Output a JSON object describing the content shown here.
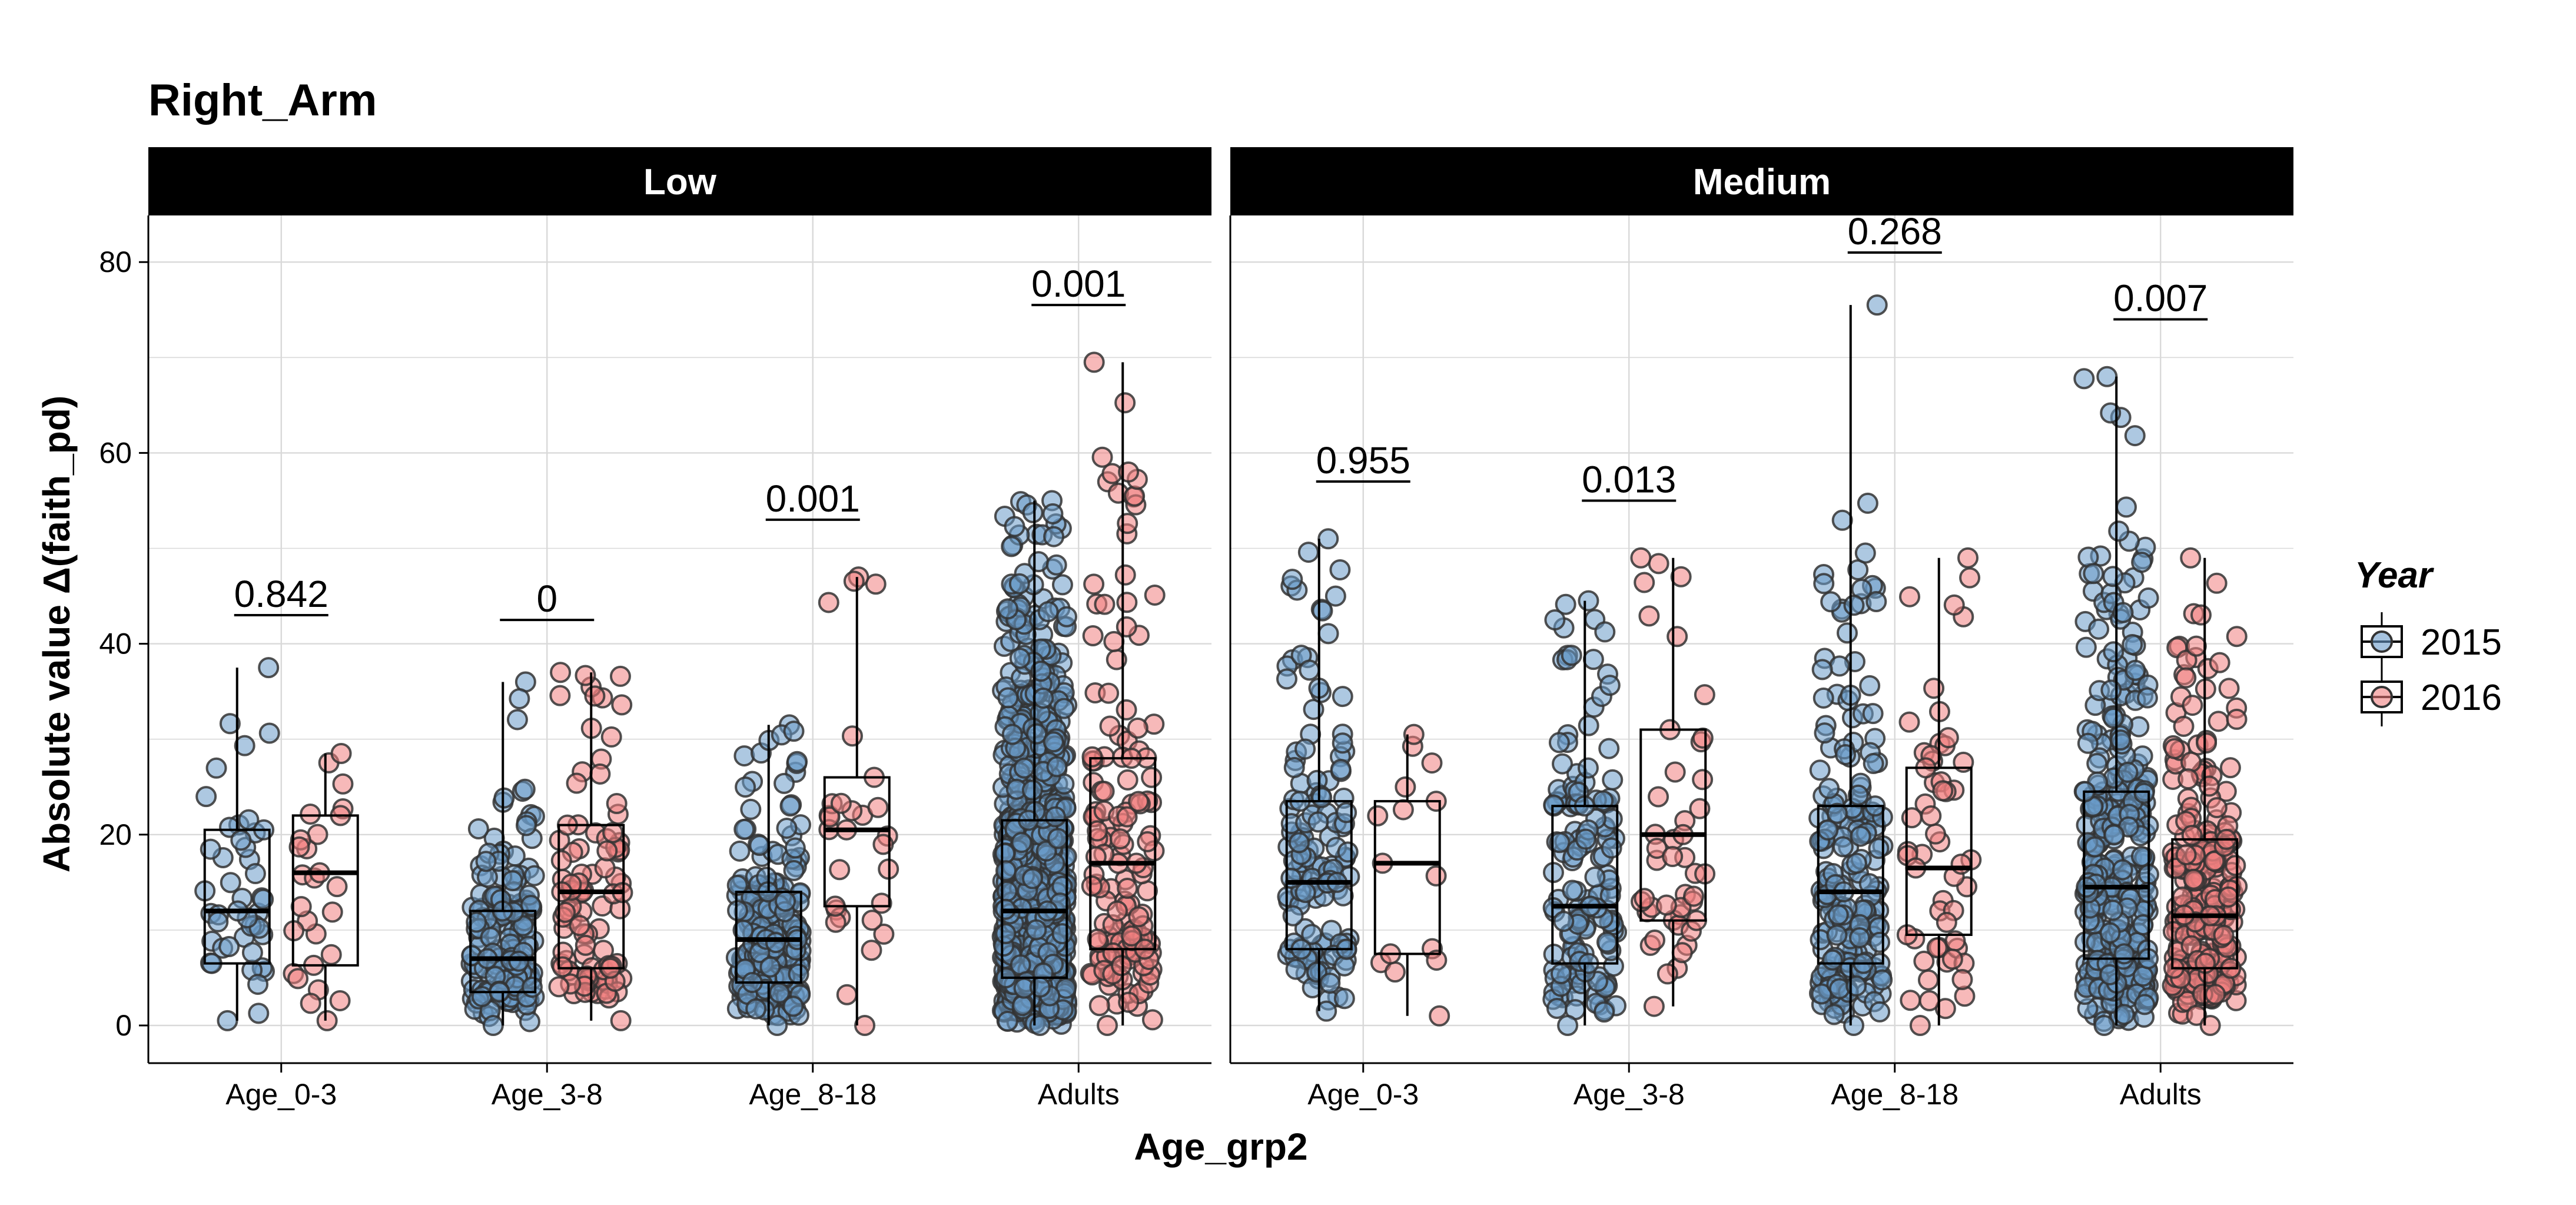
{
  "chart_data": {
    "type": "scatter",
    "title": "Right_Arm",
    "xlabel": "Age_grp2",
    "ylabel": "Absolute value Δ(faith_pd)",
    "ylim": [
      -4,
      85
    ],
    "yticks": [
      0,
      20,
      40,
      60,
      80
    ],
    "categories": [
      "Age_0-3",
      "Age_3-8",
      "Age_8-18",
      "Adults"
    ],
    "grid": true,
    "legend": {
      "title": "Year",
      "position": "right",
      "entries": [
        {
          "label": "2015",
          "color": "#6a9bc9"
        },
        {
          "label": "2016",
          "color": "#f08080"
        }
      ]
    },
    "panels": [
      {
        "name": "Low",
        "groups": [
          {
            "category": "Age_0-3",
            "box_2015": {
              "whisker_low": 0.5,
              "q1": 6.5,
              "median": 12,
              "q3": 20.5,
              "whisker_high": 37.5,
              "n": 40
            },
            "box_2016": {
              "whisker_low": 0.5,
              "q1": 6.3,
              "median": 16,
              "q3": 22,
              "whisker_high": 28.5,
              "n": 22
            },
            "pvalue": "0.842",
            "pvalue_y": 43
          },
          {
            "category": "Age_3-8",
            "box_2015": {
              "whisker_low": 0,
              "q1": 3.5,
              "median": 7,
              "q3": 12,
              "whisker_high": 36,
              "n": 160
            },
            "box_2016": {
              "whisker_low": 0.5,
              "q1": 6,
              "median": 14,
              "q3": 21,
              "whisker_high": 37,
              "n": 90
            },
            "pvalue": "0",
            "pvalue_y": 42.5
          },
          {
            "category": "Age_8-18",
            "box_2015": {
              "whisker_low": 0,
              "q1": 4.5,
              "median": 9,
              "q3": 14,
              "whisker_high": 31.5,
              "n": 230
            },
            "box_2016": {
              "whisker_low": 0,
              "q1": 12.5,
              "median": 20.5,
              "q3": 26,
              "whisker_high": 47,
              "n": 22
            },
            "pvalue": "0.001",
            "pvalue_y": 53
          },
          {
            "category": "Adults",
            "box_2015": {
              "whisker_low": 0,
              "q1": 5,
              "median": 12,
              "q3": 21.5,
              "whisker_high": 55,
              "n": 1000
            },
            "box_2016": {
              "whisker_low": 0,
              "q1": 8,
              "median": 17,
              "q3": 28,
              "whisker_high": 69.5,
              "n": 140
            },
            "pvalue": "0.001",
            "pvalue_y": 75.5
          }
        ]
      },
      {
        "name": "Medium",
        "groups": [
          {
            "category": "Age_0-3",
            "box_2015": {
              "whisker_low": 1.5,
              "q1": 8,
              "median": 15,
              "q3": 23.5,
              "whisker_high": 51,
              "n": 130
            },
            "box_2016": {
              "whisker_low": 1,
              "q1": 7.5,
              "median": 17,
              "q3": 23.5,
              "whisker_high": 30.5,
              "n": 10
            },
            "pvalue": "0.955",
            "pvalue_y": 57
          },
          {
            "category": "Age_3-8",
            "box_2015": {
              "whisker_low": 0,
              "q1": 6.5,
              "median": 12.5,
              "q3": 23,
              "whisker_high": 44.5,
              "n": 140
            },
            "box_2016": {
              "whisker_low": 2,
              "q1": 11,
              "median": 20,
              "q3": 31,
              "whisker_high": 49,
              "n": 40
            },
            "pvalue": "0.013",
            "pvalue_y": 55
          },
          {
            "category": "Age_8-18",
            "box_2015": {
              "whisker_low": 0,
              "q1": 6.5,
              "median": 14,
              "q3": 23,
              "whisker_high": 75.5,
              "n": 200
            },
            "box_2016": {
              "whisker_low": 0,
              "q1": 9.5,
              "median": 16.5,
              "q3": 27,
              "whisker_high": 49,
              "n": 50
            },
            "pvalue": "0.268",
            "pvalue_y": 81
          },
          {
            "category": "Adults",
            "box_2015": {
              "whisker_low": 0,
              "q1": 7,
              "median": 14.5,
              "q3": 24.5,
              "whisker_high": 68,
              "n": 340
            },
            "box_2016": {
              "whisker_low": 0,
              "q1": 6,
              "median": 11.5,
              "q3": 19.5,
              "whisker_high": 49,
              "n": 250
            },
            "pvalue": "0.007",
            "pvalue_y": 74
          }
        ]
      }
    ]
  }
}
